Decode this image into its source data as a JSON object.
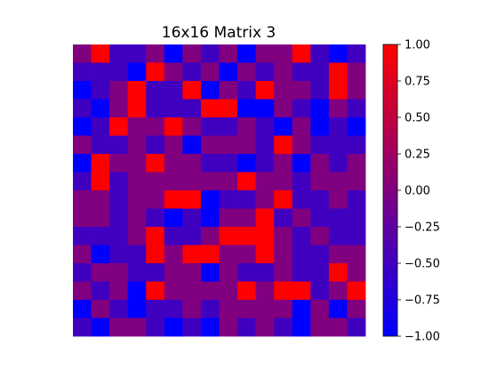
{
  "chart_data": {
    "type": "heatmap",
    "title": "16x16 Matrix 3",
    "xlabel": "",
    "ylabel": "",
    "rows": 16,
    "cols": 16,
    "value_range": [
      -1.0,
      1.0
    ],
    "colorbar": {
      "ticks": [
        1.0,
        0.75,
        0.5,
        0.25,
        0.0,
        -0.25,
        -0.5,
        -0.75,
        -1.0
      ],
      "tick_labels": [
        "1.00",
        "0.75",
        "0.50",
        "0.25",
        "0.00",
        "−0.25",
        "−0.50",
        "−0.75",
        "−1.00"
      ],
      "colors": {
        "min": "#0000ff",
        "mid": "#800080",
        "max": "#ff0000"
      }
    },
    "values": [
      [
        0.0,
        1.0,
        -0.5,
        -0.5,
        0.0,
        -1.0,
        0.0,
        -0.5,
        0.0,
        -1.0,
        0.0,
        0.0,
        1.0,
        -0.5,
        -1.0,
        -0.5
      ],
      [
        -0.5,
        -0.5,
        -0.5,
        -1.0,
        1.0,
        0.0,
        -0.5,
        0.0,
        -1.0,
        0.0,
        -0.5,
        0.0,
        -0.5,
        -0.5,
        1.0,
        0.0
      ],
      [
        -1.0,
        -0.5,
        0.0,
        1.0,
        -0.5,
        -0.5,
        1.0,
        -1.0,
        0.0,
        -0.5,
        1.0,
        0.0,
        0.0,
        -0.5,
        1.0,
        0.0
      ],
      [
        -0.5,
        -1.0,
        0.0,
        1.0,
        -0.5,
        -0.5,
        -0.5,
        1.0,
        1.0,
        -1.0,
        -1.0,
        0.0,
        -0.5,
        -1.0,
        0.0,
        -0.5
      ],
      [
        -1.0,
        -0.5,
        1.0,
        0.0,
        0.0,
        1.0,
        0.0,
        -0.5,
        -0.5,
        0.0,
        -0.5,
        -1.0,
        0.0,
        -1.0,
        -0.5,
        -1.0
      ],
      [
        0.0,
        -0.5,
        -0.5,
        0.0,
        -0.5,
        0.0,
        -1.0,
        0.0,
        0.0,
        0.0,
        -0.5,
        1.0,
        0.0,
        -0.5,
        -0.5,
        -0.5
      ],
      [
        -1.0,
        1.0,
        0.0,
        0.0,
        1.0,
        0.0,
        0.0,
        -0.5,
        -0.5,
        -1.0,
        -0.5,
        0.0,
        -1.0,
        0.0,
        -0.5,
        0.0
      ],
      [
        -0.5,
        1.0,
        -0.5,
        0.0,
        0.0,
        0.0,
        0.0,
        0.0,
        0.0,
        1.0,
        0.0,
        0.0,
        -0.5,
        0.0,
        0.0,
        0.0
      ],
      [
        0.0,
        0.0,
        -0.5,
        0.0,
        0.0,
        1.0,
        1.0,
        -1.0,
        -0.5,
        -0.5,
        0.0,
        1.0,
        -0.5,
        -0.5,
        0.0,
        -0.5
      ],
      [
        0.0,
        0.0,
        -0.5,
        0.0,
        -0.5,
        -1.0,
        -0.5,
        -1.0,
        0.0,
        0.0,
        1.0,
        -0.5,
        0.0,
        -0.5,
        -0.5,
        -0.5
      ],
      [
        -0.5,
        -0.5,
        -0.5,
        0.0,
        1.0,
        -0.5,
        -0.5,
        0.0,
        1.0,
        1.0,
        1.0,
        0.0,
        -0.5,
        0.0,
        -0.5,
        -0.5
      ],
      [
        0.0,
        -1.0,
        -0.5,
        -0.5,
        1.0,
        0.0,
        1.0,
        1.0,
        0.0,
        0.0,
        1.0,
        0.0,
        -0.5,
        -0.5,
        0.0,
        0.0
      ],
      [
        -0.5,
        0.0,
        0.0,
        -0.5,
        -0.5,
        0.0,
        0.0,
        -1.0,
        0.0,
        -0.5,
        -0.5,
        0.0,
        -0.5,
        -0.5,
        1.0,
        0.0
      ],
      [
        0.0,
        -0.5,
        0.0,
        -1.0,
        1.0,
        0.0,
        0.0,
        0.0,
        0.0,
        1.0,
        0.0,
        1.0,
        1.0,
        -0.5,
        0.0,
        1.0
      ],
      [
        -1.0,
        0.0,
        -0.5,
        -1.0,
        -0.5,
        -0.5,
        0.0,
        -0.5,
        0.0,
        0.0,
        0.0,
        0.0,
        -1.0,
        0.0,
        -1.0,
        0.0
      ],
      [
        -0.5,
        -1.0,
        0.0,
        0.0,
        -0.5,
        -1.0,
        -0.5,
        -1.0,
        0.0,
        -0.5,
        0.0,
        -0.5,
        -1.0,
        0.0,
        0.0,
        -0.5
      ]
    ]
  }
}
